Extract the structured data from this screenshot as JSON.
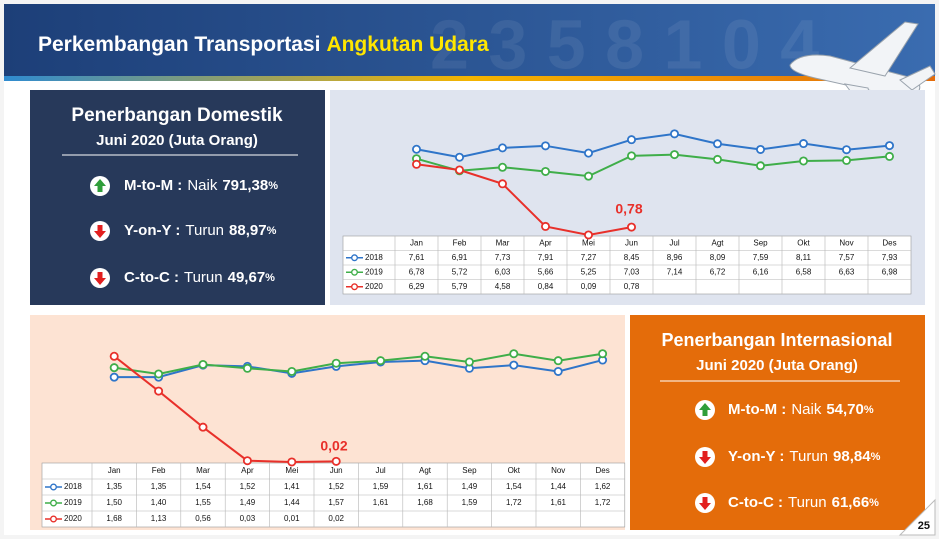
{
  "header": {
    "title": "Perkembangan Transportasi",
    "title_highlight": "Angkutan Udara"
  },
  "page_number": "25",
  "panels": [
    {
      "title": "Penerbangan Domestik",
      "subtitle": "Juni 2020 (Juta Orang)",
      "items": [
        {
          "label": "M-to-M :",
          "direction": "Naik",
          "value": "791,38",
          "unit": "%"
        },
        {
          "label": "Y-on-Y :",
          "direction": "Turun",
          "value": "88,97",
          "unit": "%"
        },
        {
          "label": "C-to-C :",
          "direction": "Turun",
          "value": "49,67",
          "unit": "%"
        }
      ]
    },
    {
      "title": "Penerbangan Internasional",
      "subtitle": "Juni 2020 (Juta Orang)",
      "items": [
        {
          "label": "M-to-M :",
          "direction": "Naik",
          "value": "54,70",
          "unit": "%"
        },
        {
          "label": "Y-on-Y :",
          "direction": "Turun",
          "value": "98,84",
          "unit": "%"
        },
        {
          "label": "C-to-C :",
          "direction": "Turun",
          "value": "61,66",
          "unit": "%"
        }
      ]
    }
  ],
  "chart_data": [
    {
      "type": "line",
      "annotation": "0,78",
      "ylim": [
        0,
        10
      ],
      "categories": [
        "Jan",
        "Feb",
        "Mar",
        "Apr",
        "Mei",
        "Jun",
        "Jul",
        "Agt",
        "Sep",
        "Okt",
        "Nov",
        "Des"
      ],
      "series": [
        {
          "name": "2018",
          "color": "#2f75c9",
          "values": [
            7.61,
            6.91,
            7.73,
            7.91,
            7.27,
            8.45,
            8.96,
            8.09,
            7.59,
            8.11,
            7.57,
            7.93
          ],
          "value_labels": [
            "7,61",
            "6,91",
            "7,73",
            "7,91",
            "7,27",
            "8,45",
            "8,96",
            "8,09",
            "7,59",
            "8,11",
            "7,57",
            "7,93"
          ]
        },
        {
          "name": "2019",
          "color": "#3fae49",
          "values": [
            6.78,
            5.72,
            6.03,
            5.66,
            5.25,
            7.03,
            7.14,
            6.72,
            6.16,
            6.58,
            6.63,
            6.98
          ],
          "value_labels": [
            "6,78",
            "5,72",
            "6,03",
            "5,66",
            "5,25",
            "7,03",
            "7,14",
            "6,72",
            "6,16",
            "6,58",
            "6,63",
            "6,98"
          ]
        },
        {
          "name": "2020",
          "color": "#e8302a",
          "values": [
            6.29,
            5.79,
            4.58,
            0.84,
            0.09,
            0.78,
            null,
            null,
            null,
            null,
            null,
            null
          ],
          "value_labels": [
            "6,29",
            "5,79",
            "4,58",
            "0,84",
            "0,09",
            "0,78",
            null,
            null,
            null,
            null,
            null,
            null
          ]
        }
      ]
    },
    {
      "type": "line",
      "annotation": "0,02",
      "ylim": [
        0,
        2
      ],
      "categories": [
        "Jan",
        "Feb",
        "Mar",
        "Apr",
        "Mei",
        "Jun",
        "Jul",
        "Agt",
        "Sep",
        "Okt",
        "Nov",
        "Des"
      ],
      "series": [
        {
          "name": "2018",
          "color": "#2f75c9",
          "values": [
            1.35,
            1.35,
            1.54,
            1.52,
            1.41,
            1.52,
            1.59,
            1.61,
            1.49,
            1.54,
            1.44,
            1.62
          ],
          "value_labels": [
            "1,35",
            "1,35",
            "1,54",
            "1,52",
            "1,41",
            "1,52",
            "1,59",
            "1,61",
            "1,49",
            "1,54",
            "1,44",
            "1,62"
          ]
        },
        {
          "name": "2019",
          "color": "#3fae49",
          "values": [
            1.5,
            1.4,
            1.55,
            1.49,
            1.44,
            1.57,
            1.61,
            1.68,
            1.59,
            1.72,
            1.61,
            1.72
          ],
          "value_labels": [
            "1,50",
            "1,40",
            "1,55",
            "1,49",
            "1,44",
            "1,57",
            "1,61",
            "1,68",
            "1,59",
            "1,72",
            "1,61",
            "1,72"
          ]
        },
        {
          "name": "2020",
          "color": "#e8302a",
          "values": [
            1.68,
            1.13,
            0.56,
            0.03,
            0.01,
            0.02,
            null,
            null,
            null,
            null,
            null,
            null
          ],
          "value_labels": [
            "1,68",
            "1,13",
            "0,56",
            "0,03",
            "0,01",
            "0,02",
            null,
            null,
            null,
            null,
            null,
            null
          ]
        }
      ]
    }
  ]
}
